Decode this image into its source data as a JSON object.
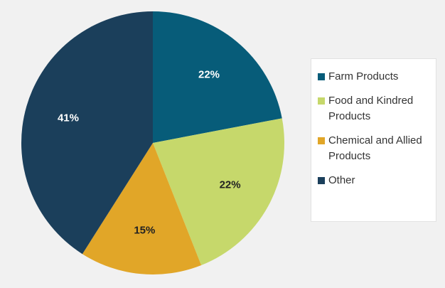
{
  "chart_data": {
    "type": "pie",
    "categories": [
      "Farm Products",
      "Food and Kindred Products",
      "Chemical and Allied Products",
      "Other"
    ],
    "values": [
      22,
      22,
      15,
      41
    ],
    "value_labels": [
      "22%",
      "22%",
      "15%",
      "41%"
    ],
    "colors": [
      "#075c79",
      "#c6d86b",
      "#e1a628",
      "#1b3f5b"
    ],
    "start_angle": "top",
    "direction": "clockwise",
    "legend": "right"
  }
}
